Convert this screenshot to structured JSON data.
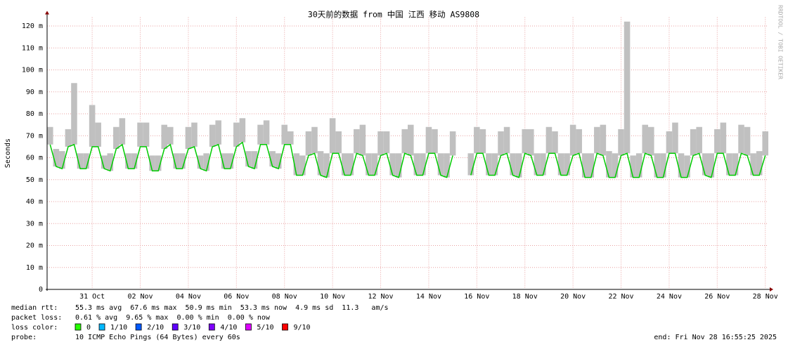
{
  "chart_data": {
    "type": "line",
    "title": "30天前的数据 from 中国 江西 移动 AS9808",
    "y_label": "Seconds",
    "watermark": "RRDTOOL / TOBI OETIKER",
    "ylim": [
      0,
      124
    ],
    "yticks": [
      {
        "value": 0,
        "label": "0"
      },
      {
        "value": 10,
        "label": "10 m"
      },
      {
        "value": 20,
        "label": "20 m"
      },
      {
        "value": 30,
        "label": "30 m"
      },
      {
        "value": 40,
        "label": "40 m"
      },
      {
        "value": 50,
        "label": "50 m"
      },
      {
        "value": 60,
        "label": "60 m"
      },
      {
        "value": 70,
        "label": "70 m"
      },
      {
        "value": 80,
        "label": "80 m"
      },
      {
        "value": 90,
        "label": "90 m"
      },
      {
        "value": 100,
        "label": "100 m"
      },
      {
        "value": 110,
        "label": "110 m"
      },
      {
        "value": 120,
        "label": "120 m"
      }
    ],
    "grid": true,
    "categories": [
      null,
      null,
      null,
      null,
      null,
      null,
      null,
      "31 Oct",
      null,
      null,
      null,
      null,
      null,
      null,
      null,
      "02 Nov",
      null,
      null,
      null,
      null,
      null,
      null,
      null,
      "04 Nov",
      null,
      null,
      null,
      null,
      null,
      null,
      null,
      "06 Nov",
      null,
      null,
      null,
      null,
      null,
      null,
      null,
      "08 Nov",
      null,
      null,
      null,
      null,
      null,
      null,
      null,
      "10 Nov",
      null,
      null,
      null,
      null,
      null,
      null,
      null,
      "12 Nov",
      null,
      null,
      null,
      null,
      null,
      null,
      null,
      "14 Nov",
      null,
      null,
      null,
      null,
      null,
      null,
      null,
      "16 Nov",
      null,
      null,
      null,
      null,
      null,
      null,
      null,
      "18 Nov",
      null,
      null,
      null,
      null,
      null,
      null,
      null,
      "20 Nov",
      null,
      null,
      null,
      null,
      null,
      null,
      null,
      "22 Nov",
      null,
      null,
      null,
      null,
      null,
      null,
      null,
      "24 Nov",
      null,
      null,
      null,
      null,
      null,
      null,
      null,
      "26 Nov",
      null,
      null,
      null,
      null,
      null,
      null,
      null,
      "28 Nov"
    ],
    "series": [
      {
        "name": "median rtt:",
        "color": "#00cc00",
        "values": [
          66,
          56,
          55,
          65,
          66,
          55,
          55,
          65,
          65,
          55,
          54,
          64,
          66,
          55,
          55,
          65,
          65,
          54,
          54,
          64,
          66,
          55,
          55,
          64,
          65,
          55,
          54,
          65,
          66,
          55,
          55,
          65,
          67,
          56,
          55,
          66,
          66,
          56,
          55,
          66,
          66,
          52,
          52,
          61,
          62,
          52,
          51,
          62,
          62,
          52,
          52,
          62,
          61,
          52,
          52,
          61,
          62,
          52,
          51,
          62,
          61,
          52,
          52,
          62,
          62,
          52,
          51,
          61,
          null,
          null,
          52,
          62,
          62,
          52,
          52,
          61,
          62,
          52,
          51,
          62,
          61,
          52,
          52,
          62,
          62,
          52,
          52,
          61,
          62,
          51,
          51,
          62,
          61,
          51,
          51,
          61,
          62,
          51,
          51,
          62,
          61,
          51,
          51,
          62,
          62,
          51,
          51,
          61,
          62,
          52,
          51,
          62,
          62,
          52,
          52,
          62,
          61,
          52,
          52,
          61
        ]
      },
      {
        "color": "#c0c0c0",
        "values": [
          74,
          64,
          63,
          73,
          94,
          62,
          62,
          84,
          76,
          61,
          62,
          74,
          78,
          62,
          62,
          76,
          76,
          61,
          61,
          75,
          74,
          62,
          62,
          74,
          76,
          61,
          62,
          75,
          77,
          62,
          62,
          76,
          78,
          63,
          63,
          75,
          77,
          63,
          62,
          75,
          72,
          62,
          61,
          72,
          74,
          63,
          62,
          78,
          72,
          62,
          62,
          73,
          75,
          62,
          62,
          72,
          72,
          62,
          62,
          73,
          75,
          62,
          62,
          74,
          73,
          62,
          62,
          72,
          null,
          null,
          62,
          74,
          73,
          62,
          62,
          72,
          74,
          62,
          62,
          73,
          73,
          62,
          62,
          74,
          72,
          62,
          62,
          75,
          73,
          62,
          62,
          74,
          75,
          63,
          62,
          73,
          122,
          61,
          62,
          75,
          74,
          62,
          62,
          72,
          76,
          62,
          61,
          73,
          74,
          62,
          62,
          73,
          76,
          62,
          62,
          75,
          74,
          62,
          63,
          72
        ]
      }
    ],
    "stats": [
      {
        "label": "median rtt:",
        "text": "55.3 ms avg  67.6 ms max  50.9 ms min  53.3 ms now  4.9 ms sd  11.3   am/s"
      },
      {
        "label": "packet loss:",
        "text": "0.61 % avg  9.65 % max  0.00 % min  0.00 % now"
      }
    ],
    "loss_color_label": "loss color:",
    "loss_colors": [
      {
        "label": "0",
        "color": "#26ff00"
      },
      {
        "label": "1/10",
        "color": "#00b8ff"
      },
      {
        "label": "2/10",
        "color": "#0059ff"
      },
      {
        "label": "3/10",
        "color": "#5e00ff"
      },
      {
        "label": "4/10",
        "color": "#7e00ff"
      },
      {
        "label": "5/10",
        "color": "#dd00ff"
      },
      {
        "label": "9/10",
        "color": "#ff0000"
      }
    ],
    "probe_label": "probe:",
    "probe": "10 ICMP Echo Pings (64 Bytes) every 60s",
    "end": "end: Fri Nov 28 16:55:25 2025"
  }
}
